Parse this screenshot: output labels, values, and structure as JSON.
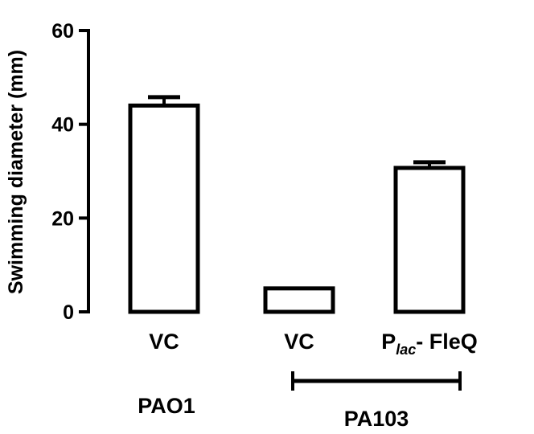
{
  "chart_data": {
    "type": "bar",
    "ylabel": "Swimming diameter (mm)",
    "ylim": [
      0,
      60
    ],
    "yticks": [
      0,
      20,
      40,
      60
    ],
    "grid": false,
    "categories": [
      {
        "label": "VC",
        "subscript_prefix": "",
        "subscript": "",
        "suffix": ""
      },
      {
        "label": "VC",
        "subscript_prefix": "",
        "subscript": "",
        "suffix": ""
      },
      {
        "label": "P",
        "subscript_prefix": "P",
        "subscript": "lac",
        "suffix": "- FleQ"
      }
    ],
    "values": [
      44,
      5,
      30.7
    ],
    "errors": [
      1.8,
      0,
      1.2
    ],
    "bar_fill": "#ffffff",
    "bar_stroke": "#000000",
    "groups": [
      {
        "label": "PAO1",
        "bars": [
          0
        ]
      },
      {
        "label": "PA103",
        "bars": [
          1,
          2
        ]
      }
    ]
  }
}
